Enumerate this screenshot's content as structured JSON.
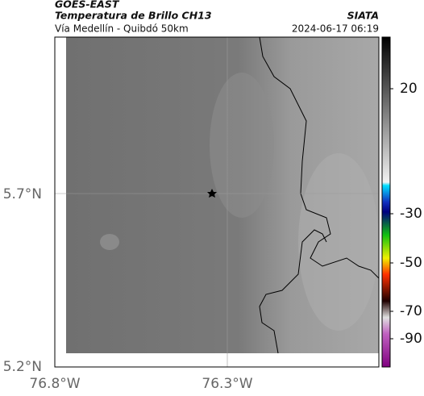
{
  "header": {
    "line1": "GOES-EAST",
    "line2": "Temperatura de Brillo CH13",
    "source": "SIATA",
    "subtitle": "Vía Medellín - Quibdó 50km",
    "timestamp": "2024-06-17 06:19"
  },
  "axes": {
    "lat_labels": [
      "5.7°N",
      "5.2°N"
    ],
    "lon_labels": [
      "76.8°W",
      "76.3°W"
    ]
  },
  "colorbar": {
    "ticks": [
      20,
      -30,
      -50,
      -70,
      -90
    ]
  }
}
